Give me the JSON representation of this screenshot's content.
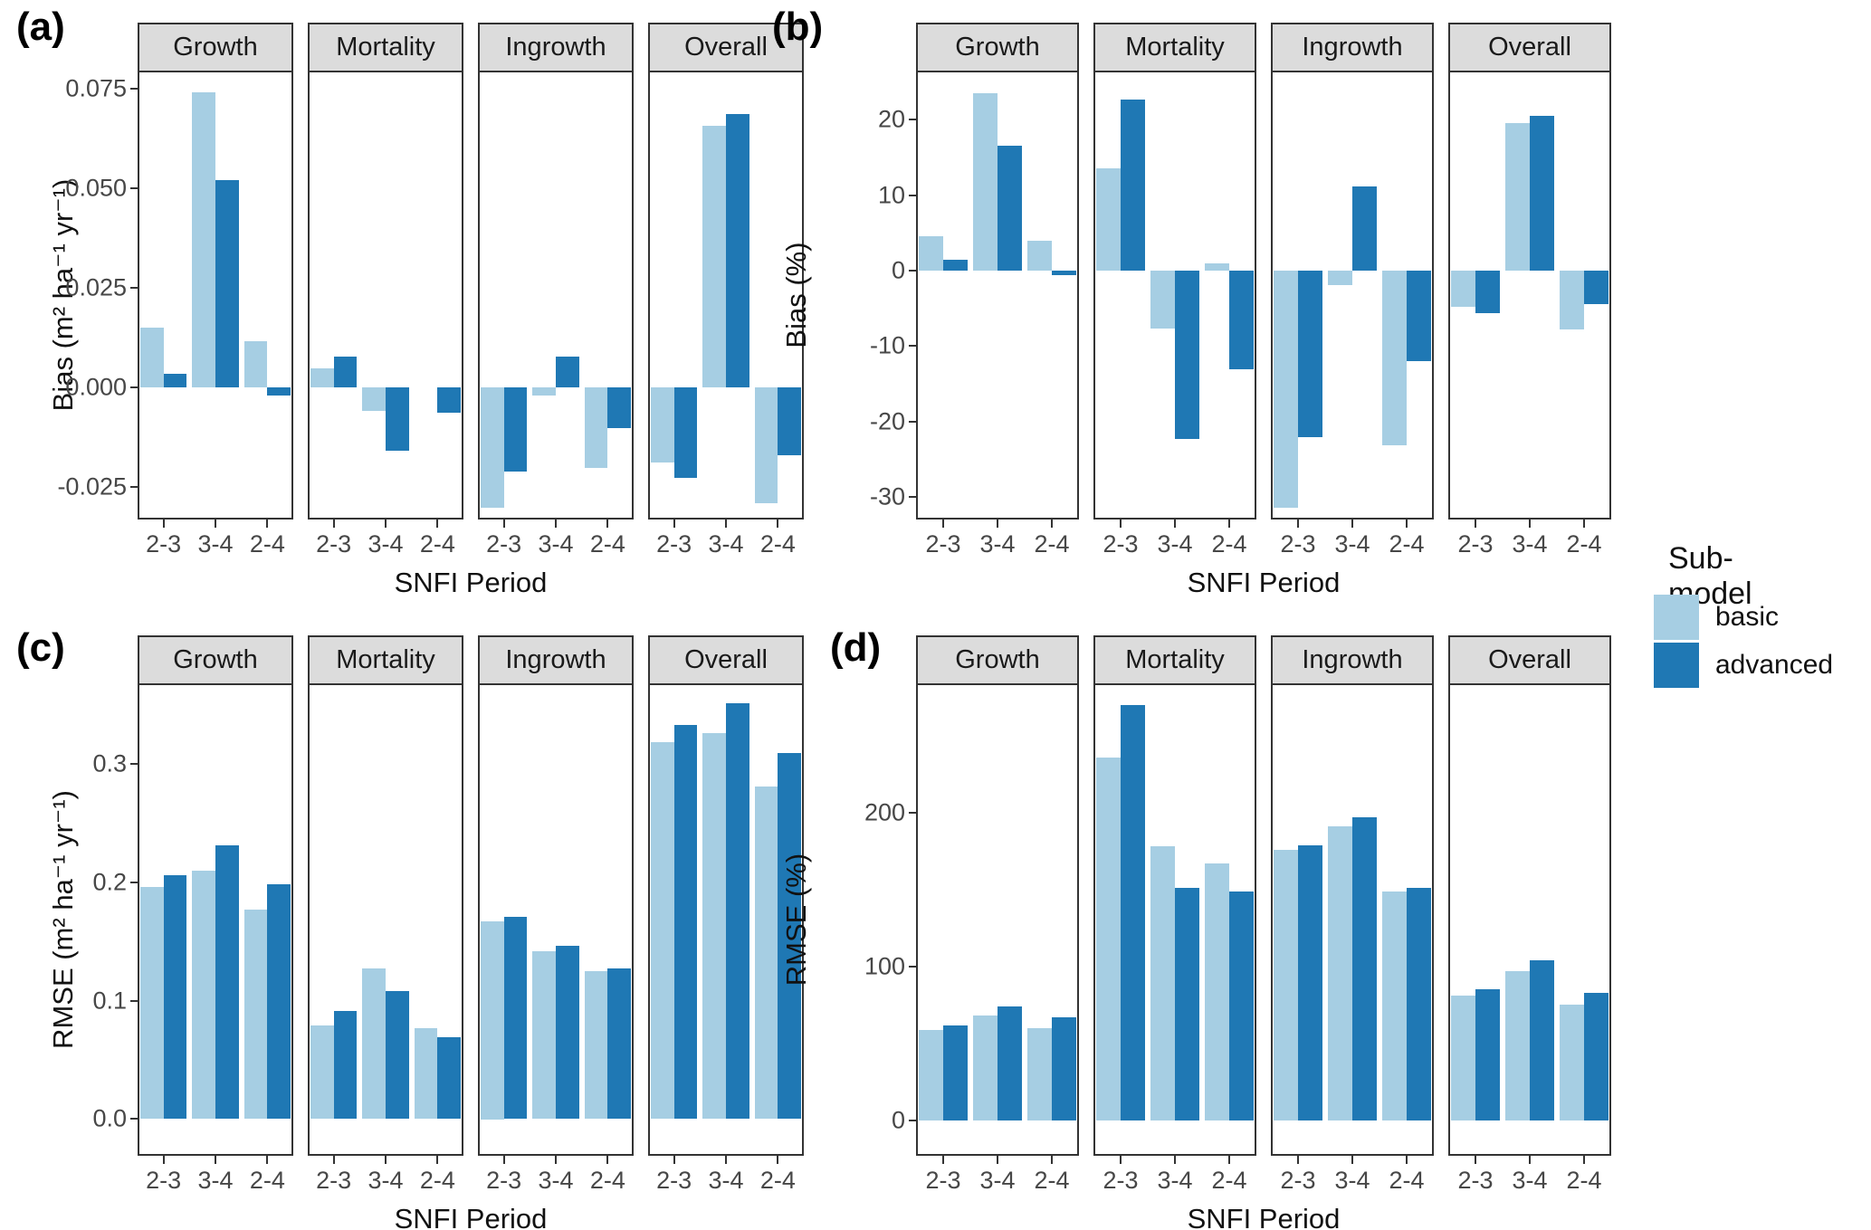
{
  "colors": {
    "basic": "#A6CEE3",
    "advanced": "#1F78B4",
    "strip_fill": "#DCDCDC",
    "panel_border": "#333333",
    "axis_text": "#474747"
  },
  "legend": {
    "title": "Sub-model",
    "items": [
      {
        "label": "basic",
        "color_key": "basic"
      },
      {
        "label": "advanced",
        "color_key": "advanced"
      }
    ]
  },
  "chart_data": [
    {
      "id": "a",
      "type": "bar",
      "letter": "(a)",
      "ylabel": "Bias (m² ha⁻¹ yr⁻¹)",
      "xlabel": "SNFI Period",
      "legend_position": "right",
      "grid": false,
      "facets": [
        "Growth",
        "Mortality",
        "Ingrowth",
        "Overall"
      ],
      "categories": [
        "2-3",
        "3-4",
        "2-4"
      ],
      "ylim": [
        -0.0332,
        0.0795
      ],
      "yticks": [
        0.075,
        0.05,
        0.025,
        0.0,
        -0.025
      ],
      "ytick_labels": [
        "0.075",
        "0.050",
        "0.025",
        "0.000",
        "-0.025"
      ],
      "series": [
        {
          "name": "basic",
          "values": {
            "Growth": [
              0.015,
              0.074,
              0.0115
            ],
            "Mortality": [
              0.0047,
              -0.006,
              0.0
            ],
            "Ingrowth": [
              -0.0302,
              -0.002,
              -0.0202
            ],
            "Overall": [
              -0.0188,
              0.0657,
              -0.0291
            ]
          }
        },
        {
          "name": "advanced",
          "values": {
            "Growth": [
              0.0035,
              0.052,
              -0.002
            ],
            "Mortality": [
              0.0077,
              -0.016,
              -0.0063
            ],
            "Ingrowth": [
              -0.0212,
              0.0078,
              -0.0103
            ],
            "Overall": [
              -0.0228,
              0.0687,
              -0.0171
            ]
          }
        }
      ]
    },
    {
      "id": "b",
      "type": "bar",
      "letter": "(b)",
      "ylabel": "Bias (%)",
      "xlabel": "SNFI Period",
      "legend_position": "right",
      "grid": false,
      "facets": [
        "Growth",
        "Mortality",
        "Ingrowth",
        "Overall"
      ],
      "categories": [
        "2-3",
        "3-4",
        "2-4"
      ],
      "ylim": [
        -33.0,
        26.5
      ],
      "yticks": [
        20,
        10,
        0,
        -10,
        -20,
        -30
      ],
      "ytick_labels": [
        "20",
        "10",
        "0",
        "-10",
        "-20",
        "-30"
      ],
      "series": [
        {
          "name": "basic",
          "values": {
            "Growth": [
              4.5,
              23.5,
              3.9
            ],
            "Mortality": [
              13.5,
              -7.7,
              0.9
            ],
            "Ingrowth": [
              -31.5,
              -1.9,
              -23.2
            ],
            "Overall": [
              -4.8,
              19.5,
              -7.8
            ]
          }
        },
        {
          "name": "advanced",
          "values": {
            "Growth": [
              1.4,
              16.5,
              -0.6
            ],
            "Mortality": [
              22.7,
              -22.3,
              -13.1
            ],
            "Ingrowth": [
              -22.1,
              11.1,
              -12.0
            ],
            "Overall": [
              -5.7,
              20.5,
              -4.4
            ]
          }
        }
      ]
    },
    {
      "id": "c",
      "type": "bar",
      "letter": "(c)",
      "ylabel": "RMSE (m² ha⁻¹ yr⁻¹)",
      "xlabel": "SNFI Period",
      "legend_position": "right",
      "grid": false,
      "facets": [
        "Growth",
        "Mortality",
        "Ingrowth",
        "Overall"
      ],
      "categories": [
        "2-3",
        "3-4",
        "2-4"
      ],
      "ylim": [
        -0.031,
        0.368
      ],
      "yticks": [
        0.3,
        0.2,
        0.1,
        0.0
      ],
      "ytick_labels": [
        "0.3",
        "0.2",
        "0.1",
        "0.0"
      ],
      "series": [
        {
          "name": "basic",
          "values": {
            "Growth": [
              0.196,
              0.21,
              0.177
            ],
            "Mortality": [
              0.079,
              0.127,
              0.077
            ],
            "Ingrowth": [
              0.167,
              0.142,
              0.125
            ],
            "Overall": [
              0.318,
              0.326,
              0.281
            ]
          }
        },
        {
          "name": "advanced",
          "values": {
            "Growth": [
              0.206,
              0.231,
              0.198
            ],
            "Mortality": [
              0.091,
              0.108,
              0.069
            ],
            "Ingrowth": [
              0.171,
              0.146,
              0.127
            ],
            "Overall": [
              0.333,
              0.351,
              0.309
            ]
          }
        }
      ]
    },
    {
      "id": "d",
      "type": "bar",
      "letter": "(d)",
      "ylabel": "RMSE (%)",
      "xlabel": "SNFI Period",
      "legend_position": "right",
      "grid": false,
      "facets": [
        "Growth",
        "Mortality",
        "Ingrowth",
        "Overall"
      ],
      "categories": [
        "2-3",
        "3-4",
        "2-4"
      ],
      "ylim": [
        -23,
        284
      ],
      "yticks": [
        200,
        100,
        0
      ],
      "ytick_labels": [
        "200",
        "100",
        "0"
      ],
      "series": [
        {
          "name": "basic",
          "values": {
            "Growth": [
              59,
              68,
              60
            ],
            "Mortality": [
              236,
              178,
              167
            ],
            "Ingrowth": [
              176,
              191,
              149
            ],
            "Overall": [
              81,
              97,
              75
            ]
          }
        },
        {
          "name": "advanced",
          "values": {
            "Growth": [
              62,
              74,
              67
            ],
            "Mortality": [
              270,
              151,
              149
            ],
            "Ingrowth": [
              179,
              197,
              151
            ],
            "Overall": [
              85,
              104,
              83
            ]
          }
        }
      ]
    }
  ]
}
